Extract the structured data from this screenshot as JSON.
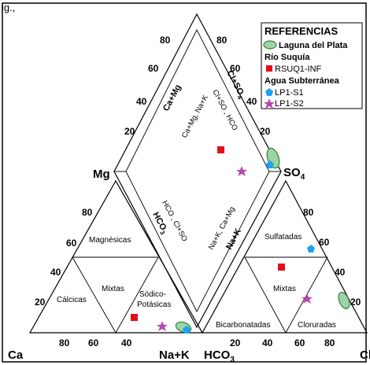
{
  "header_fragment": "ig.,",
  "corners": {
    "ca": "Ca",
    "mg": "Mg",
    "na_k": "Na+K",
    "hco3": "HCO",
    "hco3_sub": "3",
    "so4": "SO",
    "so4_sub": "4",
    "cl": "Cl"
  },
  "axis_ticks": {
    "diamond_top_left": [
      "80",
      "60",
      "40",
      "20"
    ],
    "diamond_top_right": [
      "80",
      "60",
      "40",
      "20"
    ],
    "mg_axis": [
      "80",
      "60",
      "40",
      "20"
    ],
    "ca_axis": [
      "80",
      "60",
      "40"
    ],
    "hco3_axis": [
      "20",
      "40",
      "60",
      "80"
    ],
    "so4_axis": [
      "80",
      "60",
      "40",
      "20"
    ]
  },
  "diamond_axes": {
    "ca_mg": "Ca+Mg",
    "ca_mg_na_k": "Ca+Mg, Na+K",
    "cl_so4": "Cl+SO",
    "cl_so4_sub": "4",
    "cl_so4_hco3": "Cl+SO , HCO",
    "hco3_cl_so4": "HCO , Cl+SO",
    "hco3": "HCO",
    "hco3_sub": "3",
    "na_k_ca_mg": "Na+K, Ca+Mg",
    "na_k": "Na+K"
  },
  "cation_fields": {
    "magnesicas": "Magnésicas",
    "calcicas": "Cálcicas",
    "mixtas": "Mixtas",
    "sodico": "Sódico-",
    "potasicas": "Potásicas"
  },
  "anion_fields": {
    "sulfatadas": "Sulfatadas",
    "mixtas": "Mixtas",
    "bicarbonatadas": "Bicarbonatadas",
    "cloruradas": "Cloruradas"
  },
  "legend": {
    "title": "REFERENCIAS",
    "laguna": "Laguna del Plata",
    "rio_heading": "Río Suquía",
    "rio_sample": "RSUQ1-INF",
    "agua_heading": "Agua Subterránea",
    "lp1_s1": "LP1-S1",
    "lp1_s2": "LP1-S2"
  },
  "colors": {
    "laguna_fill": "#9ed3a6",
    "laguna_stroke": "#3a8a4a",
    "rio": "#e0101a",
    "lp1_s1": "#1ea3f0",
    "lp1_s2": "#b847b0"
  },
  "symbols": {
    "laguna": "green-ellipse",
    "rio": "red-square",
    "lp1_s1": "blue-pentagon",
    "lp1_s2": "magenta-star"
  }
}
